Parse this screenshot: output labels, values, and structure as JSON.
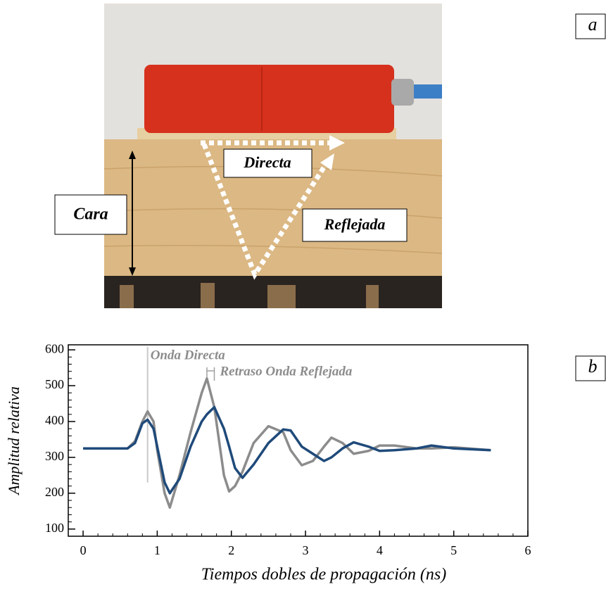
{
  "panels": [
    "a",
    "b"
  ],
  "photo": {
    "labels": [
      "Directa",
      "Cara",
      "Reflejada"
    ]
  },
  "chart_data": {
    "type": "line",
    "xlabel": "Tiempos dobles de propagación (ns)",
    "ylabel": "Amplitud relativa",
    "x": [
      0,
      0.6,
      0.7,
      0.8,
      0.87,
      0.95,
      1.0,
      1.1,
      1.17,
      1.3,
      1.45,
      1.6,
      1.67,
      1.77,
      1.9,
      1.97,
      2.05,
      2.15,
      2.3,
      2.5,
      2.7,
      2.8,
      2.95,
      3.1,
      3.25,
      3.35,
      3.5,
      3.65,
      3.85,
      4.0,
      4.2,
      4.5,
      4.7,
      5.0,
      5.5
    ],
    "series": [
      {
        "color": "#8c8c8c",
        "values": [
          325,
          325,
          345,
          400,
          428,
          400,
          320,
          200,
          160,
          250,
          370,
          480,
          520,
          440,
          250,
          205,
          220,
          260,
          340,
          387,
          370,
          320,
          278,
          290,
          330,
          355,
          340,
          310,
          318,
          333,
          333,
          325,
          325,
          328,
          320
        ]
      },
      {
        "color": "#1f4a7a",
        "values": [
          325,
          325,
          340,
          395,
          405,
          380,
          330,
          230,
          200,
          240,
          330,
          400,
          420,
          440,
          380,
          330,
          270,
          243,
          280,
          340,
          378,
          375,
          330,
          310,
          290,
          300,
          325,
          342,
          330,
          318,
          320,
          325,
          333,
          325,
          320
        ]
      }
    ],
    "annotations": [
      {
        "text": "Onda Directa",
        "x": 0.87
      },
      {
        "text": "Retraso Onda Reflejada",
        "x": [
          1.67,
          1.77
        ]
      }
    ],
    "xlim": [
      -0.2,
      6
    ],
    "xticks": [
      0,
      1,
      2,
      3,
      4,
      5,
      6
    ],
    "ylim": [
      80,
      614
    ],
    "yticks": [
      100,
      200,
      300,
      400,
      500,
      600
    ]
  }
}
